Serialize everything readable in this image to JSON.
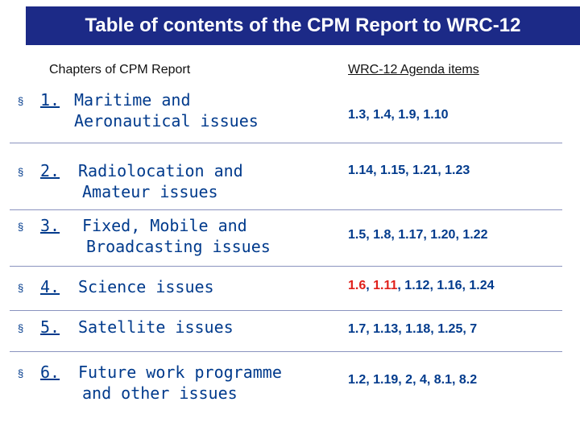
{
  "title": "Table of contents of the CPM Report to WRC-12",
  "headers": {
    "chapters": "Chapters of CPM Report",
    "agenda": "WRC-12 Agenda items"
  },
  "bullet": "§",
  "rows": [
    {
      "num": "1.",
      "line1": "Maritime and",
      "line2": "Aeronautical issues",
      "items": [
        {
          "text": "1.3, 1.4, 1.9, 1.10",
          "red": false
        }
      ]
    },
    {
      "num": "2.",
      "line1": "Radiolocation and",
      "line2": "Amateur issues",
      "items": [
        {
          "text": "1.14, 1.15, 1.21, 1.23",
          "red": false
        }
      ]
    },
    {
      "num": "3.",
      "line1": "Fixed, Mobile and",
      "line2": "Broadcasting issues",
      "items": [
        {
          "text": "1.5, 1.8, 1.17, 1.20, 1.22",
          "red": false
        }
      ]
    },
    {
      "num": "4.",
      "line1": "Science issues",
      "line2": "",
      "items": [
        {
          "text": "1.6",
          "red": true
        },
        {
          "text": ", ",
          "red": false
        },
        {
          "text": "1.11",
          "red": true
        },
        {
          "text": ", 1.12, 1.16, 1.24",
          "red": false
        }
      ]
    },
    {
      "num": "5.",
      "line1": "Satellite issues",
      "line2": "",
      "items": [
        {
          "text": "1.7, 1.13, 1.18, 1.25, 7",
          "red": false
        }
      ]
    },
    {
      "num": "6.",
      "line1": "Future work programme",
      "line2": "and other issues",
      "items": [
        {
          "text": "1.2, 1.19, 2, 4, 8.1, 8.2",
          "red": false
        }
      ]
    }
  ],
  "colors": {
    "title_bg": "#1c2a87",
    "text": "#003a8c",
    "highlight": "#e0201b"
  }
}
